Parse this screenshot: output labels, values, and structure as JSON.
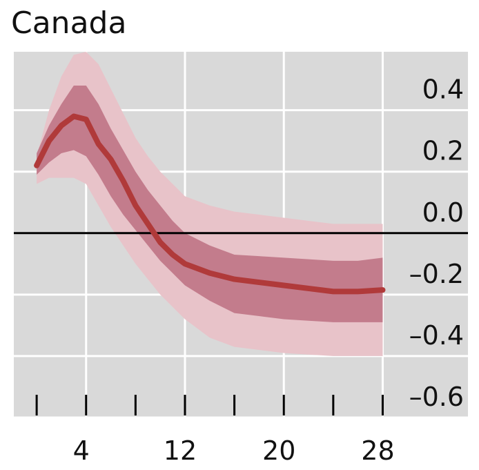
{
  "chart_data": {
    "type": "fan",
    "title": "Canada",
    "x": [
      0,
      1,
      2,
      3,
      4,
      5,
      6,
      7,
      8,
      9,
      10,
      11,
      12,
      14,
      16,
      18,
      20,
      22,
      24,
      26,
      28
    ],
    "values": [
      0.22,
      0.3,
      0.35,
      0.38,
      0.37,
      0.29,
      0.24,
      0.17,
      0.09,
      0.03,
      -0.03,
      -0.07,
      -0.1,
      -0.13,
      -0.15,
      -0.16,
      -0.17,
      -0.18,
      -0.19,
      -0.19,
      -0.185
    ],
    "color": "#b03a3a",
    "bands": [
      {
        "upper": [
          0.25,
          0.4,
          0.51,
          0.58,
          0.59,
          0.55,
          0.47,
          0.39,
          0.31,
          0.25,
          0.2,
          0.16,
          0.12,
          0.09,
          0.07,
          0.06,
          0.05,
          0.04,
          0.03,
          0.03,
          0.03
        ],
        "lower": [
          0.16,
          0.18,
          0.18,
          0.18,
          0.16,
          0.09,
          0.02,
          -0.04,
          -0.1,
          -0.15,
          -0.2,
          -0.24,
          -0.28,
          -0.34,
          -0.37,
          -0.38,
          -0.39,
          -0.395,
          -0.4,
          -0.4,
          -0.4
        ],
        "color": "#e8c3c9"
      },
      {
        "upper": [
          0.26,
          0.35,
          0.42,
          0.48,
          0.48,
          0.42,
          0.34,
          0.27,
          0.2,
          0.14,
          0.09,
          0.04,
          0.0,
          -0.04,
          -0.07,
          -0.075,
          -0.08,
          -0.085,
          -0.09,
          -0.09,
          -0.08
        ],
        "lower": [
          0.19,
          0.23,
          0.26,
          0.27,
          0.25,
          0.19,
          0.12,
          0.06,
          0.01,
          -0.04,
          -0.09,
          -0.13,
          -0.17,
          -0.22,
          -0.26,
          -0.27,
          -0.28,
          -0.285,
          -0.29,
          -0.29,
          -0.29
        ],
        "color": "#c37c8c"
      }
    ],
    "xlim": [
      -1.85,
      34.9
    ],
    "xticks": [
      4,
      12,
      20,
      28
    ],
    "minor_xticks": [
      0,
      8,
      16,
      24
    ],
    "ylim": [
      -0.6,
      0.59
    ],
    "yticks": [
      {
        "value": -0.6,
        "label": "–0.6"
      },
      {
        "value": -0.4,
        "label": "–0.4"
      },
      {
        "value": -0.2,
        "label": "–0.2"
      },
      {
        "value": 0,
        "label": "0.0"
      },
      0.2,
      0.4
    ],
    "grid": true,
    "zero_line": true,
    "background": "#d9d9d9"
  }
}
